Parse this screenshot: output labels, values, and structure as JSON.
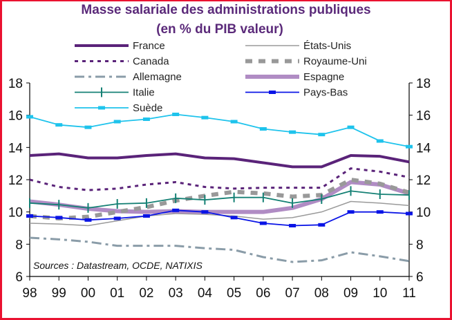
{
  "chart_data": {
    "type": "line",
    "title": "Masse salariale des administrations publiques",
    "subtitle": "(en % du PIB valeur)",
    "xlabel": "",
    "ylabel": "",
    "categories": [
      "98",
      "99",
      "00",
      "01",
      "02",
      "03",
      "04",
      "05",
      "06",
      "07",
      "08",
      "09",
      "10",
      "11"
    ],
    "ylim": [
      6,
      18
    ],
    "yticks": [
      "6",
      "8",
      "10",
      "12",
      "14",
      "16",
      "18"
    ],
    "annotation": "Sources : Datastream, OCDE, NATIXIS",
    "legend_position": "top",
    "series": [
      {
        "name": "France",
        "color": "#5a2379",
        "style": "thick",
        "values": [
          13.5,
          13.6,
          13.35,
          13.35,
          13.5,
          13.6,
          13.35,
          13.3,
          13.05,
          12.8,
          12.8,
          13.5,
          13.45,
          13.1
        ]
      },
      {
        "name": "États-Unis",
        "color": "#9a9a9a",
        "style": "thin",
        "values": [
          9.3,
          9.25,
          9.15,
          9.45,
          9.75,
          9.9,
          9.85,
          9.75,
          9.55,
          9.65,
          10.0,
          10.65,
          10.55,
          10.4
        ]
      },
      {
        "name": "Canada",
        "color": "#5a2379",
        "style": "dotted",
        "values": [
          12.0,
          11.55,
          11.35,
          11.45,
          11.7,
          11.85,
          11.55,
          11.45,
          11.5,
          11.5,
          11.5,
          12.7,
          12.5,
          12.15
        ]
      },
      {
        "name": "Royaume-Uni",
        "color": "#999999",
        "style": "dashed",
        "values": [
          9.75,
          9.6,
          9.7,
          10.0,
          10.3,
          10.7,
          11.0,
          11.25,
          11.15,
          10.95,
          11.05,
          12.0,
          11.75,
          11.2
        ]
      },
      {
        "name": "Allemagne",
        "color": "#8a9ca8",
        "style": "dashdot",
        "values": [
          8.4,
          8.3,
          8.15,
          7.9,
          7.9,
          7.9,
          7.75,
          7.65,
          7.2,
          6.9,
          7.0,
          7.5,
          7.25,
          6.95
        ]
      },
      {
        "name": "Espagne",
        "color": "#b08cc4",
        "style": "wide",
        "values": [
          10.65,
          10.45,
          10.2,
          10.05,
          10.0,
          10.05,
          10.0,
          10.0,
          10.0,
          10.25,
          10.8,
          11.85,
          11.7,
          11.15
        ]
      },
      {
        "name": "Italie",
        "color": "#148074",
        "style": "plus",
        "values": [
          10.55,
          10.45,
          10.25,
          10.5,
          10.55,
          10.85,
          10.75,
          10.9,
          10.9,
          10.55,
          10.8,
          11.3,
          11.1,
          11.05
        ]
      },
      {
        "name": "Pays-Bas",
        "color": "#0a14e6",
        "style": "square",
        "values": [
          9.75,
          9.65,
          9.5,
          9.6,
          9.75,
          10.1,
          10.0,
          9.65,
          9.3,
          9.15,
          9.2,
          10.0,
          10.0,
          9.9
        ]
      },
      {
        "name": "Suède",
        "color": "#1ec3ec",
        "style": "square",
        "values": [
          15.9,
          15.4,
          15.25,
          15.6,
          15.75,
          16.05,
          15.85,
          15.6,
          15.15,
          14.95,
          14.8,
          15.25,
          14.4,
          14.05
        ]
      }
    ]
  }
}
